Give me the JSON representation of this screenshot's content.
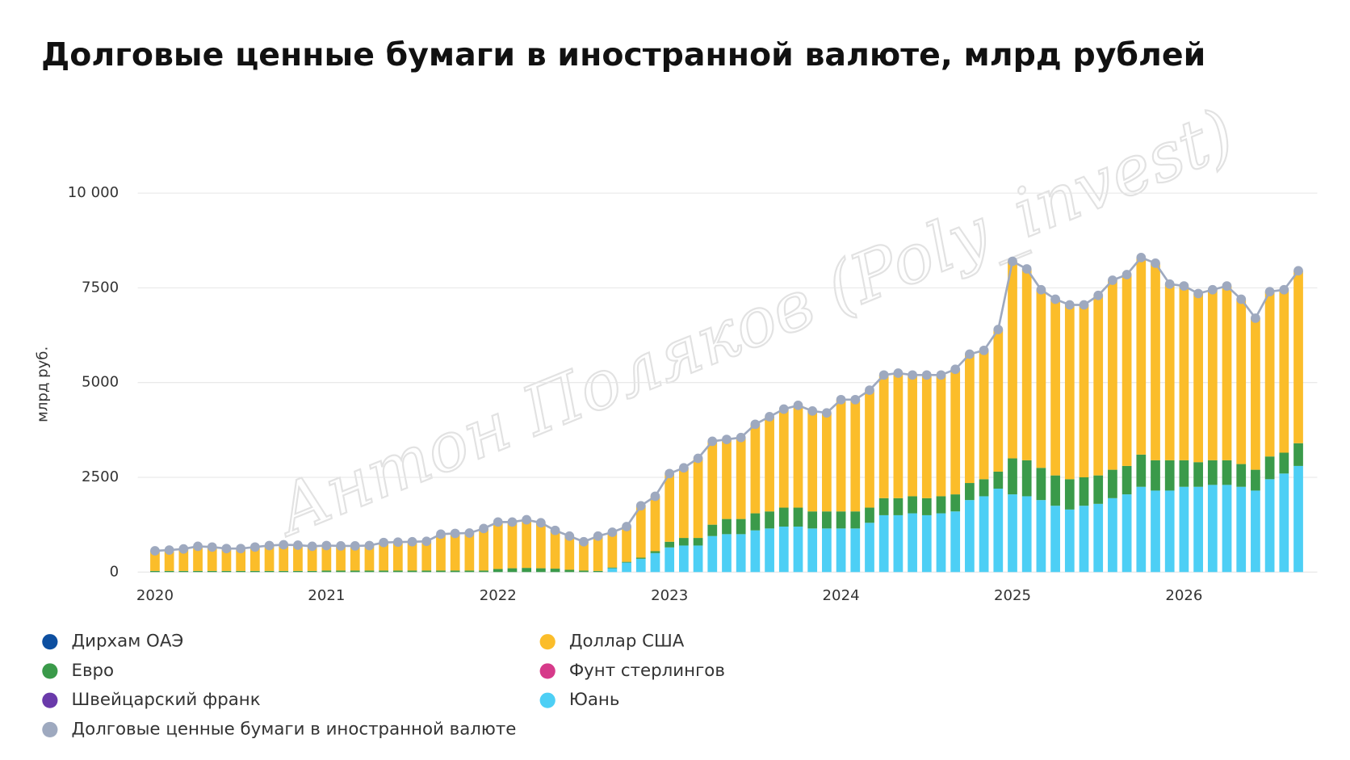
{
  "chart_data": {
    "type": "bar",
    "stacked": true,
    "title": "Долговые ценные бумаги в иностранной валюте, млрд рублей",
    "y_label": "млрд руб.",
    "watermark": "Антон Поляков (Poly_invest)",
    "categories": [
      "2020",
      null,
      null,
      null,
      null,
      null,
      null,
      null,
      null,
      null,
      null,
      null,
      "2021",
      null,
      null,
      null,
      null,
      null,
      null,
      null,
      null,
      null,
      null,
      null,
      "2022",
      null,
      null,
      null,
      null,
      null,
      null,
      null,
      null,
      null,
      null,
      null,
      "2023",
      null,
      null,
      null,
      null,
      null,
      null,
      null,
      null,
      null,
      null,
      null,
      "2024",
      null,
      null,
      null,
      null,
      null,
      null,
      null,
      null,
      null,
      null,
      null,
      "2025",
      null,
      null,
      null,
      null,
      null,
      null,
      null,
      null,
      null,
      null,
      null,
      "2026",
      null,
      null,
      null,
      null,
      null,
      null,
      null,
      null
    ],
    "ylim": [
      0,
      10000
    ],
    "yticks": [
      0,
      2500,
      5000,
      7500,
      {
        "value": 10000,
        "label": "10 000"
      }
    ],
    "grid": true,
    "series": [
      {
        "name": "Дирхам ОАЭ",
        "color": "#0d4fa0",
        "values": [
          0,
          0,
          0,
          0,
          0,
          0,
          0,
          0,
          0,
          0,
          0,
          0,
          0,
          0,
          0,
          0,
          0,
          0,
          0,
          0,
          0,
          0,
          0,
          0,
          0,
          0,
          0,
          0,
          0,
          0,
          0,
          0,
          0,
          0,
          0,
          0,
          0,
          0,
          0,
          0,
          0,
          0,
          0,
          0,
          0,
          0,
          0,
          0,
          0,
          0,
          0,
          0,
          0,
          0,
          0,
          0,
          0,
          0,
          0,
          0,
          0,
          0,
          0,
          0,
          0,
          0,
          0,
          0,
          0,
          0,
          0,
          0,
          0,
          0,
          0,
          0,
          0,
          0,
          0,
          0,
          0
        ]
      },
      {
        "name": "Евро",
        "color": "#3a9a4a",
        "values": [
          30,
          30,
          30,
          30,
          30,
          30,
          30,
          30,
          30,
          30,
          30,
          30,
          40,
          40,
          40,
          40,
          40,
          40,
          40,
          40,
          40,
          40,
          40,
          40,
          80,
          100,
          110,
          100,
          90,
          60,
          40,
          30,
          20,
          20,
          30,
          50,
          150,
          200,
          200,
          300,
          400,
          400,
          450,
          450,
          500,
          500,
          450,
          450,
          450,
          450,
          400,
          450,
          450,
          450,
          450,
          450,
          450,
          450,
          450,
          450,
          950,
          950,
          850,
          800,
          800,
          750,
          750,
          750,
          750,
          850,
          800,
          800,
          700,
          650,
          650,
          650,
          600,
          550,
          600,
          550,
          600
        ]
      },
      {
        "name": "Швейцарский франк",
        "color": "#6a3aaa",
        "values": [
          0,
          0,
          0,
          0,
          0,
          0,
          0,
          0,
          0,
          0,
          0,
          0,
          0,
          0,
          0,
          0,
          0,
          0,
          0,
          0,
          0,
          0,
          0,
          0,
          0,
          0,
          0,
          0,
          0,
          0,
          0,
          0,
          0,
          0,
          0,
          0,
          0,
          0,
          0,
          0,
          0,
          0,
          0,
          0,
          0,
          0,
          0,
          0,
          0,
          0,
          0,
          0,
          0,
          0,
          0,
          0,
          0,
          0,
          0,
          0,
          0,
          0,
          0,
          0,
          0,
          0,
          0,
          0,
          0,
          0,
          0,
          0,
          0,
          0,
          0,
          0,
          0,
          0,
          0,
          0,
          0
        ]
      },
      {
        "name": "Доллар США",
        "color": "#fbbd2a",
        "values": [
          530,
          550,
          580,
          650,
          630,
          590,
          590,
          630,
          670,
          690,
          680,
          650,
          660,
          650,
          650,
          660,
          740,
          750,
          760,
          770,
          960,
          980,
          990,
          1110,
          1240,
          1220,
          1270,
          1200,
          1010,
          890,
          760,
          920,
          930,
          930,
          1370,
          1450,
          1800,
          1850,
          2100,
          2200,
          2100,
          2150,
          2350,
          2500,
          2600,
          2700,
          2650,
          2600,
          2950,
          2950,
          3100,
          3250,
          3300,
          3200,
          3250,
          3200,
          3300,
          3400,
          3400,
          3750,
          5200,
          5050,
          4700,
          4650,
          4600,
          4550,
          4750,
          5000,
          5050,
          5200,
          5200,
          4650,
          4600,
          4450,
          4500,
          4600,
          4350,
          4000,
          4350,
          4300,
          4550
        ]
      },
      {
        "name": "Фунт стерлингов",
        "color": "#d63a8a",
        "values": [
          0,
          0,
          0,
          0,
          0,
          0,
          0,
          0,
          0,
          0,
          0,
          0,
          0,
          0,
          0,
          0,
          0,
          0,
          0,
          0,
          0,
          0,
          0,
          0,
          0,
          0,
          0,
          0,
          0,
          0,
          0,
          0,
          0,
          0,
          0,
          0,
          0,
          0,
          0,
          0,
          0,
          0,
          0,
          0,
          0,
          0,
          0,
          0,
          0,
          0,
          0,
          0,
          0,
          0,
          0,
          0,
          0,
          0,
          0,
          0,
          0,
          0,
          0,
          0,
          0,
          0,
          0,
          0,
          0,
          0,
          0,
          0,
          0,
          0,
          0,
          0,
          0,
          0,
          0,
          0,
          0
        ]
      },
      {
        "name": "Юань",
        "color": "#4dcff5",
        "values": [
          0,
          0,
          0,
          0,
          0,
          0,
          0,
          0,
          0,
          0,
          0,
          0,
          0,
          0,
          0,
          0,
          0,
          0,
          0,
          0,
          0,
          0,
          0,
          0,
          0,
          0,
          0,
          0,
          0,
          0,
          0,
          0,
          100,
          250,
          350,
          500,
          650,
          700,
          700,
          950,
          1000,
          1000,
          1100,
          1150,
          1200,
          1200,
          1150,
          1150,
          1150,
          1150,
          1300,
          1500,
          1500,
          1550,
          1500,
          1550,
          1600,
          1900,
          2000,
          2200,
          2050,
          2000,
          1900,
          1750,
          1650,
          1750,
          1800,
          1950,
          2050,
          2250,
          2150,
          2150,
          2250,
          2250,
          2300,
          2300,
          2250,
          2150,
          2450,
          2600,
          2800
        ]
      }
    ],
    "total": {
      "name": "Долговые ценные бумаги в иностранной валюте",
      "color": "#9ea9bf",
      "values": [
        560,
        580,
        610,
        680,
        660,
        620,
        620,
        660,
        700,
        720,
        710,
        680,
        700,
        690,
        690,
        700,
        780,
        790,
        800,
        810,
        1000,
        1020,
        1030,
        1150,
        1320,
        1320,
        1380,
        1300,
        1100,
        950,
        800,
        950,
        1050,
        1200,
        1750,
        2000,
        2600,
        2750,
        3000,
        3450,
        3500,
        3550,
        3900,
        4100,
        4300,
        4400,
        4250,
        4200,
        4550,
        4550,
        4800,
        5200,
        5250,
        5200,
        5200,
        5200,
        5350,
        5750,
        5850,
        6400,
        8200,
        8000,
        7450,
        7200,
        7050,
        7050,
        7300,
        7700,
        7850,
        8300,
        8150,
        7600,
        7550,
        7350,
        7450,
        7550,
        7200,
        6700,
        7400,
        7450,
        7950
      ]
    }
  }
}
